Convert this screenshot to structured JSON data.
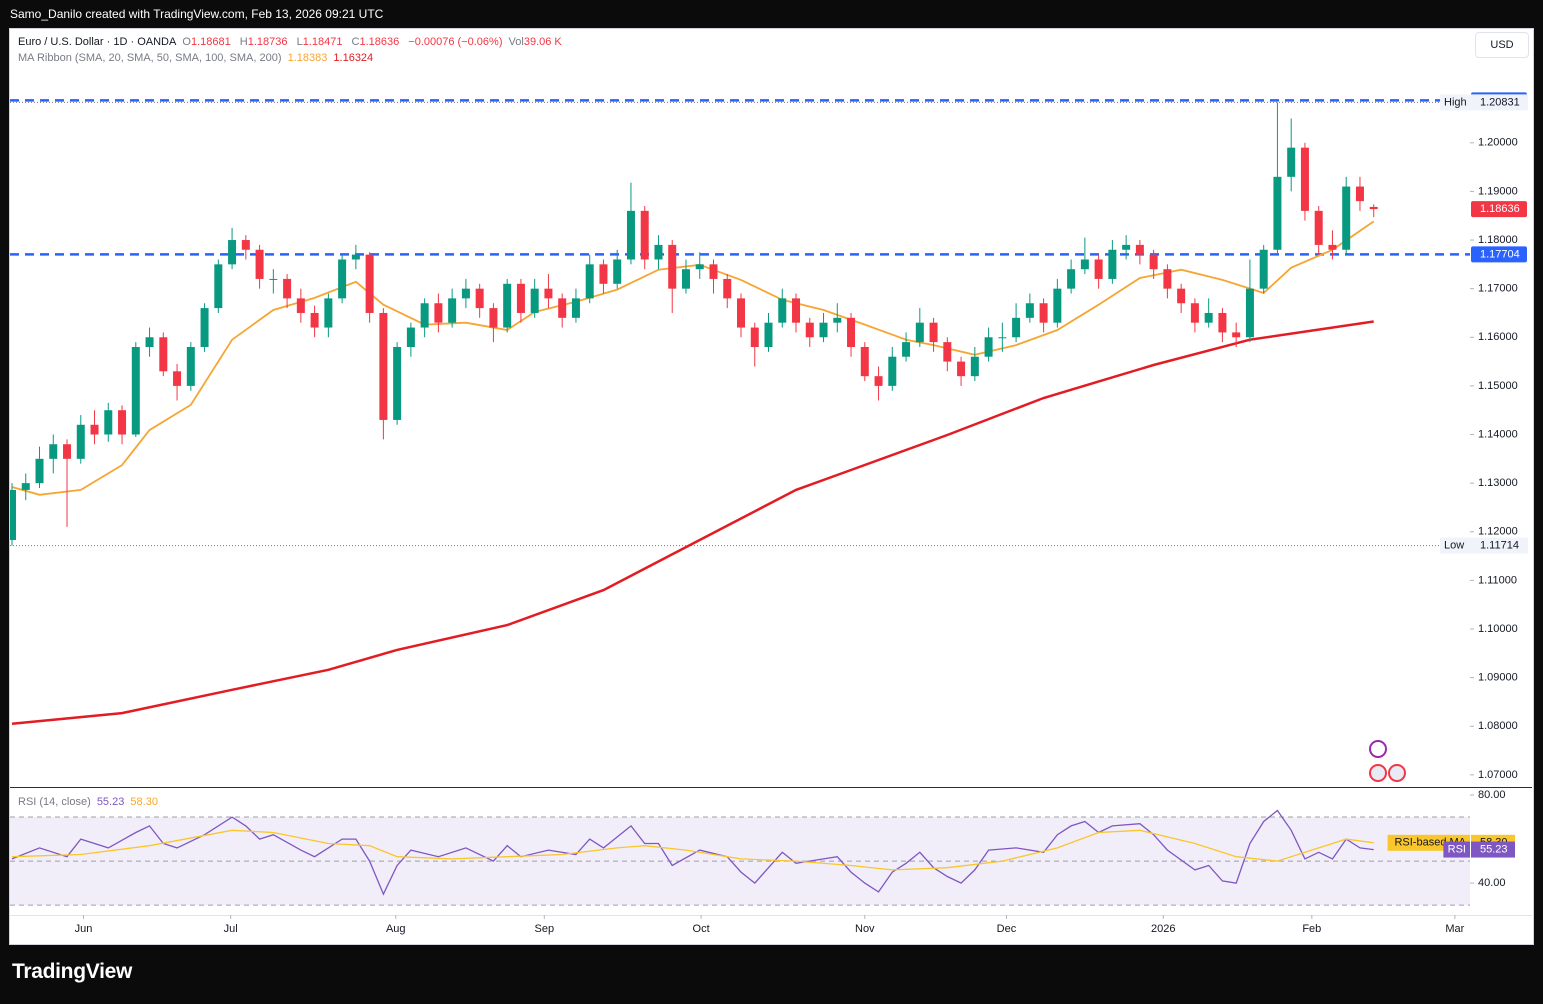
{
  "topbar": "Samo_Danilo created with TradingView.com, Feb 13, 2026 09:21 UTC",
  "currency_button": "USD",
  "brand": "TradingView",
  "legend": {
    "symbol": "Euro / U.S. Dollar · 1D · OANDA",
    "fields": [
      {
        "key": "O",
        "text": "1.18681"
      },
      {
        "key": "H",
        "text": "1.18736"
      },
      {
        "key": "L",
        "text": "1.18471"
      },
      {
        "key": "C",
        "text": "1.18636"
      }
    ],
    "change": "−0.00076 (−0.06%)",
    "volume_key": "Vol",
    "volume": "39.06 K",
    "ma_label": "MA Ribbon (SMA, 20, SMA, 50, SMA, 100, SMA, 200)",
    "ma_values": [
      "1.18383",
      "1.16324"
    ]
  },
  "chart_data": {
    "type": "candlestick",
    "xlim": [
      0,
      106
    ],
    "xticks": [
      {
        "value": 5.2,
        "label": "Jun"
      },
      {
        "value": 15.9,
        "label": "Jul"
      },
      {
        "value": 27.9,
        "label": "Aug"
      },
      {
        "value": 38.7,
        "label": "Sep"
      },
      {
        "value": 50.1,
        "label": "Oct"
      },
      {
        "value": 62.0,
        "label": "Nov"
      },
      {
        "value": 72.3,
        "label": "Dec"
      },
      {
        "value": 83.7,
        "label": "2026"
      },
      {
        "value": 94.5,
        "label": "Feb"
      },
      {
        "value": 104.9,
        "label": "Mar"
      }
    ],
    "ylim": [
      1.0675,
      1.2232
    ],
    "yticks": [
      {
        "value": 1.07,
        "label": "1.07000"
      },
      {
        "value": 1.08,
        "label": "1.08000"
      },
      {
        "value": 1.09,
        "label": "1.09000"
      },
      {
        "value": 1.1,
        "label": "1.10000"
      },
      {
        "value": 1.11,
        "label": "1.11000"
      },
      {
        "value": 1.12,
        "label": "1.12000"
      },
      {
        "value": 1.13,
        "label": "1.13000"
      },
      {
        "value": 1.14,
        "label": "1.14000"
      },
      {
        "value": 1.15,
        "label": "1.15000"
      },
      {
        "value": 1.16,
        "label": "1.16000"
      },
      {
        "value": 1.17,
        "label": "1.17000"
      },
      {
        "value": 1.18,
        "label": "1.18000"
      },
      {
        "value": 1.19,
        "label": "1.19000"
      },
      {
        "value": 1.2,
        "label": "1.20000"
      }
    ],
    "grid": false,
    "up_color": "#089981",
    "down_color": "#f23645",
    "candles": {
      "open": [
        1.1183,
        1.1286,
        1.13,
        1.135,
        1.138,
        1.135,
        1.142,
        1.14,
        1.145,
        1.14,
        1.158,
        1.16,
        1.153,
        1.15,
        1.158,
        1.166,
        1.175,
        1.18,
        1.178,
        1.172,
        1.172,
        1.168,
        1.165,
        1.162,
        1.168,
        1.176,
        1.177,
        1.165,
        1.143,
        1.158,
        1.162,
        1.167,
        1.163,
        1.168,
        1.17,
        1.166,
        1.162,
        1.171,
        1.165,
        1.17,
        1.168,
        1.164,
        1.168,
        1.175,
        1.171,
        1.176,
        1.186,
        1.176,
        1.179,
        1.17,
        1.174,
        1.175,
        1.172,
        1.168,
        1.162,
        1.158,
        1.163,
        1.168,
        1.163,
        1.16,
        1.163,
        1.164,
        1.158,
        1.152,
        1.15,
        1.156,
        1.159,
        1.163,
        1.159,
        1.155,
        1.152,
        1.156,
        1.16,
        1.16,
        1.164,
        1.167,
        1.163,
        1.17,
        1.174,
        1.176,
        1.172,
        1.178,
        1.179,
        1.177,
        1.174,
        1.17,
        1.167,
        1.163,
        1.165,
        1.161,
        1.16,
        1.17,
        1.178,
        1.193,
        1.199,
        1.186,
        1.179,
        1.178,
        1.191,
        1.18681
      ],
      "high": [
        1.13,
        1.132,
        1.1375,
        1.14,
        1.139,
        1.144,
        1.145,
        1.1465,
        1.146,
        1.159,
        1.162,
        1.161,
        1.1545,
        1.159,
        1.167,
        1.176,
        1.1825,
        1.181,
        1.179,
        1.174,
        1.173,
        1.17,
        1.1665,
        1.169,
        1.177,
        1.179,
        1.1775,
        1.166,
        1.159,
        1.163,
        1.168,
        1.169,
        1.17,
        1.172,
        1.171,
        1.167,
        1.172,
        1.172,
        1.172,
        1.173,
        1.169,
        1.17,
        1.177,
        1.176,
        1.178,
        1.1918,
        1.187,
        1.181,
        1.18,
        1.176,
        1.1775,
        1.176,
        1.173,
        1.169,
        1.163,
        1.165,
        1.17,
        1.169,
        1.164,
        1.165,
        1.167,
        1.165,
        1.159,
        1.154,
        1.158,
        1.161,
        1.166,
        1.164,
        1.16,
        1.156,
        1.158,
        1.162,
        1.163,
        1.167,
        1.169,
        1.168,
        1.172,
        1.176,
        1.1805,
        1.177,
        1.18,
        1.181,
        1.18,
        1.178,
        1.175,
        1.171,
        1.168,
        1.168,
        1.166,
        1.163,
        1.176,
        1.179,
        1.2083,
        1.205,
        1.2,
        1.187,
        1.182,
        1.193,
        1.193,
        1.18736
      ],
      "low": [
        1.11714,
        1.1265,
        1.129,
        1.132,
        1.121,
        1.134,
        1.138,
        1.1385,
        1.138,
        1.1395,
        1.156,
        1.152,
        1.147,
        1.149,
        1.157,
        1.165,
        1.174,
        1.176,
        1.17,
        1.169,
        1.166,
        1.163,
        1.16,
        1.16,
        1.167,
        1.174,
        1.163,
        1.139,
        1.142,
        1.156,
        1.16,
        1.161,
        1.162,
        1.166,
        1.164,
        1.159,
        1.161,
        1.163,
        1.164,
        1.166,
        1.162,
        1.163,
        1.167,
        1.169,
        1.17,
        1.175,
        1.174,
        1.174,
        1.165,
        1.169,
        1.172,
        1.169,
        1.166,
        1.16,
        1.154,
        1.157,
        1.162,
        1.161,
        1.158,
        1.159,
        1.161,
        1.156,
        1.151,
        1.147,
        1.149,
        1.155,
        1.158,
        1.157,
        1.153,
        1.15,
        1.151,
        1.155,
        1.157,
        1.159,
        1.163,
        1.161,
        1.162,
        1.169,
        1.173,
        1.17,
        1.171,
        1.176,
        1.175,
        1.172,
        1.168,
        1.165,
        1.161,
        1.162,
        1.159,
        1.158,
        1.159,
        1.169,
        1.177,
        1.19,
        1.184,
        1.177,
        1.176,
        1.177,
        1.186,
        1.18471
      ],
      "close": [
        1.1286,
        1.13,
        1.135,
        1.138,
        1.135,
        1.142,
        1.14,
        1.145,
        1.14,
        1.158,
        1.16,
        1.153,
        1.15,
        1.158,
        1.166,
        1.175,
        1.18,
        1.178,
        1.172,
        1.172,
        1.168,
        1.165,
        1.162,
        1.168,
        1.176,
        1.177,
        1.165,
        1.143,
        1.158,
        1.162,
        1.167,
        1.163,
        1.168,
        1.17,
        1.166,
        1.162,
        1.171,
        1.165,
        1.17,
        1.168,
        1.164,
        1.168,
        1.175,
        1.171,
        1.176,
        1.186,
        1.176,
        1.179,
        1.17,
        1.174,
        1.175,
        1.172,
        1.168,
        1.162,
        1.158,
        1.163,
        1.168,
        1.163,
        1.16,
        1.163,
        1.164,
        1.158,
        1.152,
        1.15,
        1.156,
        1.159,
        1.163,
        1.159,
        1.155,
        1.152,
        1.156,
        1.16,
        1.16,
        1.164,
        1.167,
        1.163,
        1.17,
        1.174,
        1.176,
        1.172,
        1.178,
        1.179,
        1.177,
        1.174,
        1.17,
        1.167,
        1.163,
        1.165,
        1.161,
        1.16,
        1.17,
        1.178,
        1.193,
        1.199,
        1.186,
        1.179,
        1.178,
        1.191,
        1.188,
        1.18636
      ]
    },
    "ma_lines": [
      {
        "color": "#f7a531",
        "x": [
          0,
          2,
          5,
          8,
          10,
          13,
          16,
          19,
          22,
          25,
          27,
          30,
          33,
          36,
          38,
          41,
          44,
          47,
          50,
          53,
          56,
          59,
          62,
          65,
          67,
          70,
          73,
          76,
          79,
          82,
          85,
          88,
          91,
          93,
          96,
          99
        ],
        "values": [
          1.1292,
          1.1276,
          1.1286,
          1.1337,
          1.1409,
          1.1461,
          1.1595,
          1.1656,
          1.1681,
          1.1714,
          1.1667,
          1.1626,
          1.163,
          1.1615,
          1.1652,
          1.1673,
          1.1698,
          1.1739,
          1.1749,
          1.1718,
          1.1677,
          1.1656,
          1.1626,
          1.1595,
          1.1584,
          1.1564,
          1.1584,
          1.1615,
          1.1667,
          1.1722,
          1.1739,
          1.1718,
          1.1691,
          1.1743,
          1.178,
          1.18383
        ]
      },
      {
        "color": "#e31b23",
        "x": [
          0,
          8,
          16,
          23,
          28,
          36,
          43,
          50,
          57,
          61,
          68,
          75,
          83,
          90,
          99
        ],
        "values": [
          1.0805,
          1.0827,
          1.0875,
          1.0916,
          1.0957,
          1.1008,
          1.108,
          1.1183,
          1.1286,
          1.1327,
          1.1399,
          1.1475,
          1.1543,
          1.1595,
          1.16324
        ]
      }
    ],
    "levels": [
      {
        "value": 1.20872,
        "color": "#2962ff"
      },
      {
        "value": 1.17704,
        "color": "#2962ff"
      }
    ],
    "extremes": [
      {
        "name": "High",
        "value": 1.20831
      },
      {
        "name": "Low",
        "value": 1.11714
      }
    ],
    "last_price": {
      "value": 1.18636,
      "color": "#f23645"
    },
    "rsi": {
      "label": "RSI (14, close)",
      "legend_values": [
        "55.23",
        "58.30"
      ],
      "ylim": [
        25.5,
        83.2
      ],
      "yticks": [
        {
          "value": 80,
          "label": "80.00"
        },
        {
          "value": 40,
          "label": "40.00"
        }
      ],
      "bands": [
        30,
        50,
        70
      ],
      "lines": [
        {
          "color": "#7e57c2",
          "x": [
            0,
            2,
            4,
            5,
            7,
            9,
            10,
            11,
            12,
            14,
            16,
            17,
            18,
            19,
            21,
            22,
            24,
            25,
            26,
            27,
            28,
            29,
            31,
            33,
            35,
            36,
            37,
            39,
            41,
            42,
            43,
            45,
            46,
            47,
            48,
            50,
            52,
            53,
            54,
            55,
            56,
            57,
            59,
            60,
            61,
            62,
            63,
            64,
            65,
            66,
            67,
            68,
            69,
            70,
            71,
            73,
            75,
            76,
            77,
            78,
            79,
            80,
            82,
            83,
            84,
            86,
            87,
            88,
            89,
            90,
            91,
            92,
            93,
            94,
            95,
            96,
            97,
            98,
            99
          ],
          "values": [
            51,
            56,
            52,
            60,
            56,
            63,
            66,
            58,
            56,
            62,
            70,
            66,
            60,
            62,
            55,
            52,
            60,
            60,
            50,
            35,
            48,
            55,
            52,
            56,
            50,
            57,
            52,
            55,
            53,
            60,
            56,
            66,
            58,
            58,
            48,
            55,
            52,
            45,
            40,
            47,
            54,
            49,
            51,
            52,
            45,
            40,
            36,
            45,
            49,
            54,
            47,
            43,
            40,
            46,
            55,
            56,
            54,
            62,
            66,
            68,
            63,
            66,
            67,
            62,
            55,
            46,
            48,
            41,
            40,
            58,
            68,
            73,
            64,
            51,
            54,
            51,
            60,
            56,
            55.23
          ]
        },
        {
          "color": "#f9c62b",
          "x": [
            0,
            5,
            10,
            16,
            19,
            23,
            26,
            28,
            32,
            36,
            40,
            44,
            46,
            49,
            53,
            57,
            61,
            64,
            68,
            72,
            76,
            79,
            82,
            86,
            89,
            92,
            95,
            97,
            99
          ],
          "values": [
            52,
            53,
            57,
            64,
            63,
            58,
            57,
            52,
            51,
            52,
            53,
            56,
            57,
            55,
            51,
            50,
            48,
            46,
            47,
            50,
            56,
            63,
            64,
            58,
            52,
            50,
            56,
            60,
            58.3
          ]
        }
      ],
      "tags": [
        {
          "name": "RSI-based MA",
          "value": 58.3,
          "label": "58.30",
          "color": "#f9c62b"
        },
        {
          "name": "RSI",
          "value": 55.23,
          "color": "#7e57c2"
        }
      ]
    }
  }
}
